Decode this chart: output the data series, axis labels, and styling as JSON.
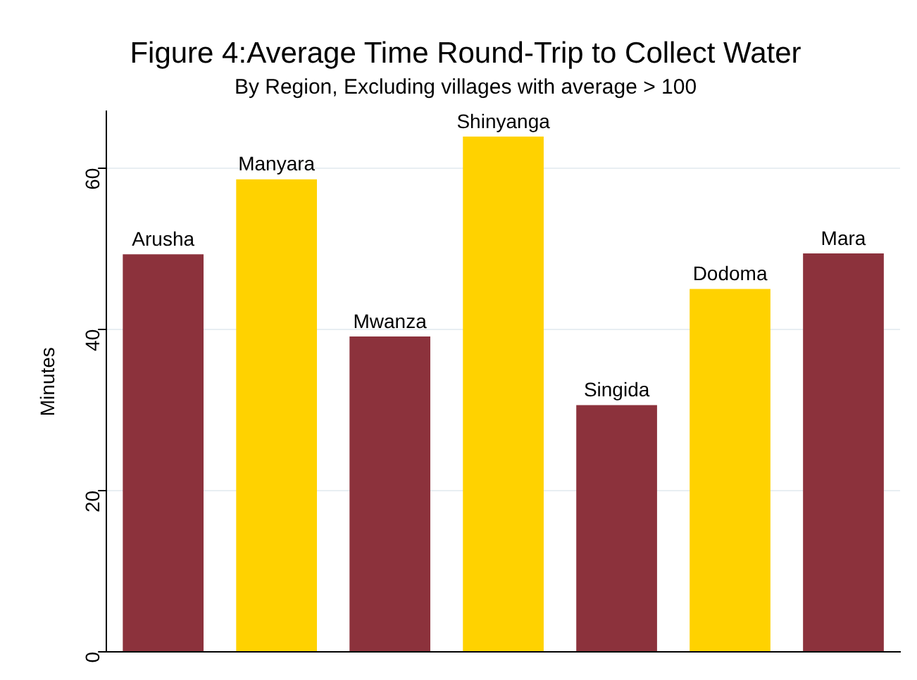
{
  "chart_data": {
    "type": "bar",
    "title": "Figure 4:Average Time Round-Trip to Collect Water",
    "subtitle": "By Region, Excluding villages with average > 100",
    "ylabel": "Minutes",
    "categories": [
      "Arusha",
      "Manyara",
      "Mwanza",
      "Shinyanga",
      "Singida",
      "Dodoma",
      "Mara"
    ],
    "values": [
      49.3,
      58.6,
      39.1,
      63.9,
      30.6,
      45.0,
      49.4
    ],
    "colors": [
      "#8c323c",
      "#ffd200",
      "#8c323c",
      "#ffd200",
      "#8c323c",
      "#ffd200",
      "#8c323c"
    ],
    "ylim": [
      0,
      67
    ],
    "yticks": [
      0,
      20,
      40,
      60
    ],
    "grid": "y",
    "tick_labels": "y",
    "legend": false
  }
}
